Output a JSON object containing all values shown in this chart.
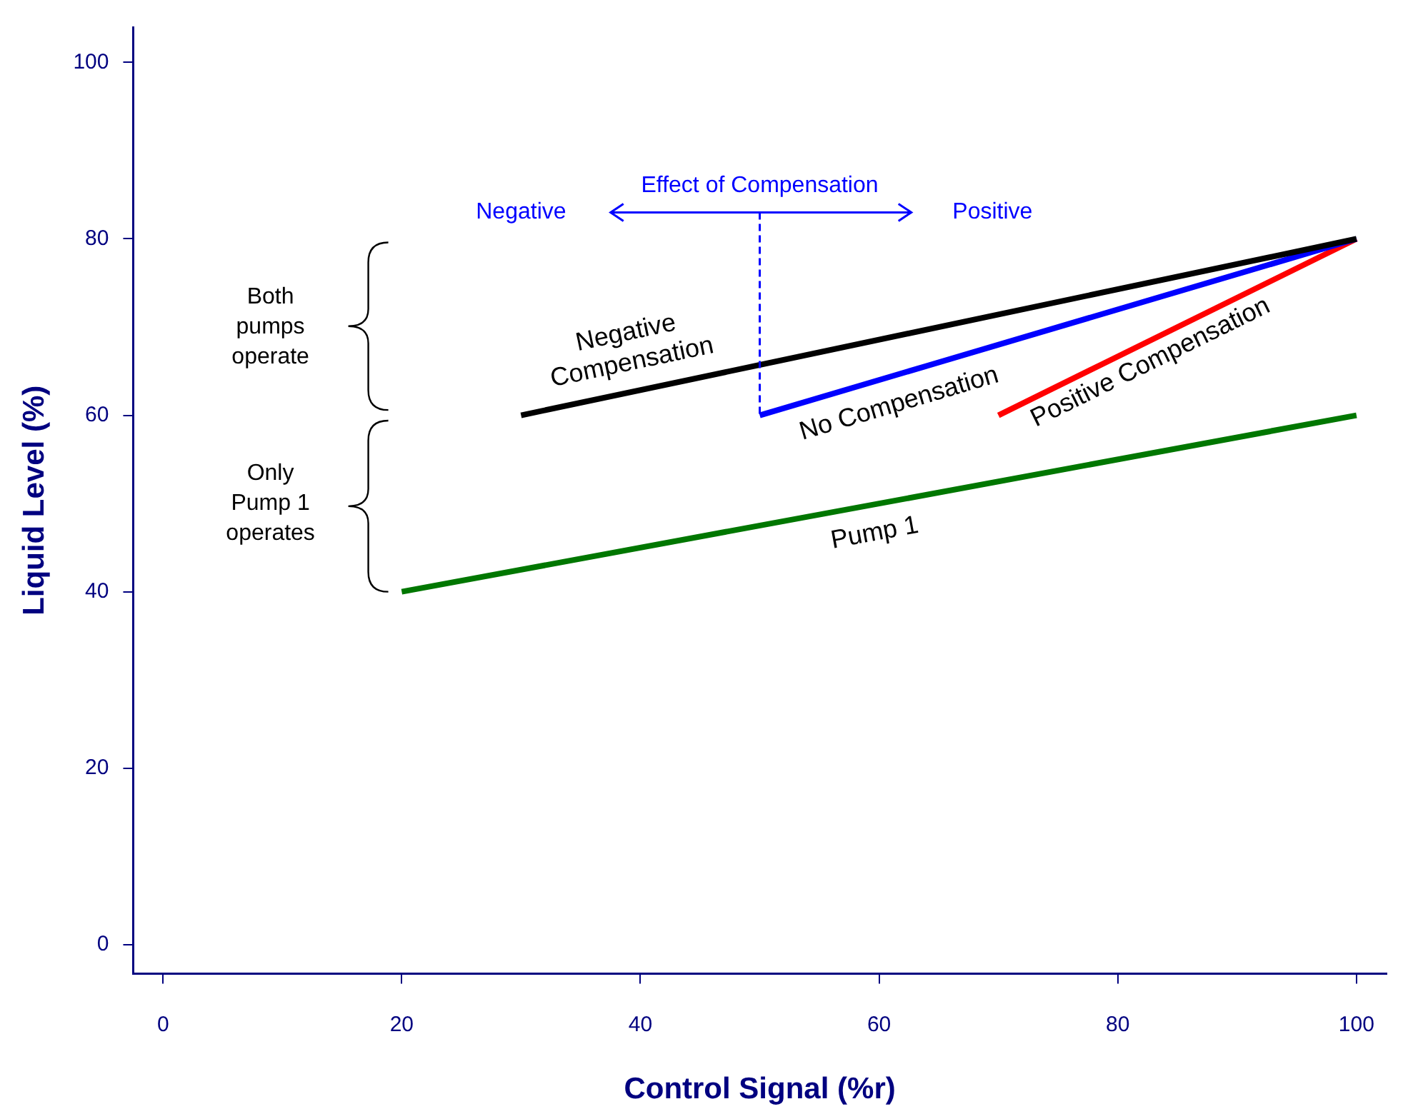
{
  "chart_data": {
    "type": "line",
    "xlabel": "Control Signal (%r)",
    "ylabel": "Liquid Level (%)",
    "xlim": [
      -2.5,
      102.5
    ],
    "ylim": [
      -3.3,
      104
    ],
    "xticks": [
      0,
      20,
      40,
      60,
      80,
      100
    ],
    "yticks": [
      0,
      20,
      40,
      60,
      80,
      100
    ],
    "grid": false,
    "legend": false,
    "marker": "none",
    "line_style": "solid",
    "series": [
      {
        "name": "Pump 1",
        "color": "#007700",
        "x": [
          20,
          100
        ],
        "values": [
          40,
          60
        ]
      },
      {
        "name": "Negative Compensation",
        "color": "#000000",
        "x": [
          30,
          100
        ],
        "values": [
          60,
          80
        ]
      },
      {
        "name": "No Compensation",
        "color": "#0000ff",
        "x": [
          50,
          100
        ],
        "values": [
          60,
          80
        ]
      },
      {
        "name": "Positive Compensation",
        "color": "#ff0000",
        "x": [
          70,
          100
        ],
        "values": [
          60,
          80
        ]
      }
    ],
    "annotations": [
      "Both pumps operate",
      "Only Pump 1 operates",
      {
        "text": "Effect of Compensation",
        "x": 50,
        "y": 60
      },
      "Negative",
      "Positive"
    ]
  }
}
